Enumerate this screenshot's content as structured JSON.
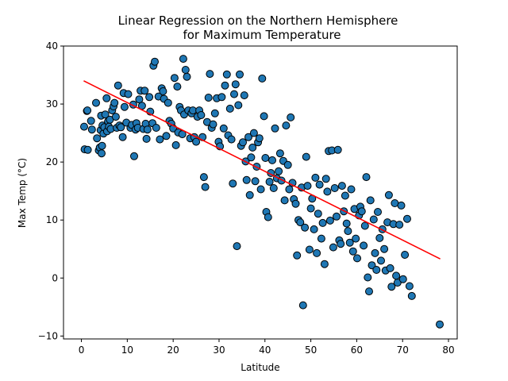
{
  "chart_data": {
    "type": "scatter",
    "title_lines": [
      "Linear Regression on the Northern Hemisphere",
      "for Maximum Temperature"
    ],
    "xlabel": "Latitude",
    "ylabel": "Max Temp (°C)",
    "xlim": [
      -3.9,
      81.9
    ],
    "ylim": [
      -10.5,
      40
    ],
    "xticks": [
      0,
      10,
      20,
      30,
      40,
      50,
      60,
      70,
      80
    ],
    "yticks": [
      -10,
      0,
      10,
      20,
      30,
      40
    ],
    "grid": false,
    "legend": "none",
    "marker_color": "#1f77b4",
    "marker_edge_color": "#000000",
    "regression_color": "#ff0000",
    "regression_line": {
      "x": [
        0.5,
        78.2
      ],
      "y": [
        34.0,
        3.3
      ]
    },
    "points": [
      [
        0.6,
        26.1
      ],
      [
        0.7,
        22.2
      ],
      [
        1.2,
        28.8
      ],
      [
        1.3,
        28.9
      ],
      [
        1.4,
        22.1
      ],
      [
        2.1,
        27.1
      ],
      [
        2.3,
        25.6
      ],
      [
        3.2,
        30.2
      ],
      [
        3.4,
        24.1
      ],
      [
        3.8,
        22.0
      ],
      [
        4.0,
        22.5
      ],
      [
        4.2,
        25.5
      ],
      [
        4.3,
        28.0
      ],
      [
        4.4,
        21.5
      ],
      [
        4.5,
        22.8
      ],
      [
        4.6,
        26.3
      ],
      [
        4.8,
        24.9
      ],
      [
        5.0,
        26.0
      ],
      [
        5.2,
        28.2
      ],
      [
        5.5,
        31.0
      ],
      [
        5.6,
        25.3
      ],
      [
        5.8,
        27.0
      ],
      [
        6.0,
        26.1
      ],
      [
        6.2,
        27.3
      ],
      [
        6.4,
        25.7
      ],
      [
        6.7,
        28.9
      ],
      [
        7.0,
        29.6
      ],
      [
        7.2,
        30.2
      ],
      [
        7.5,
        27.8
      ],
      [
        7.7,
        25.9
      ],
      [
        8.0,
        33.2
      ],
      [
        8.3,
        26.3
      ],
      [
        8.6,
        26.0
      ],
      [
        9.0,
        24.3
      ],
      [
        9.2,
        31.9
      ],
      [
        9.4,
        29.5
      ],
      [
        9.8,
        26.8
      ],
      [
        10.2,
        31.7
      ],
      [
        10.7,
        25.9
      ],
      [
        11.0,
        26.4
      ],
      [
        11.3,
        29.9
      ],
      [
        11.5,
        21.0
      ],
      [
        11.8,
        25.6
      ],
      [
        12.0,
        26.7
      ],
      [
        12.3,
        25.9
      ],
      [
        12.6,
        30.8
      ],
      [
        12.9,
        32.3
      ],
      [
        13.2,
        29.7
      ],
      [
        13.5,
        25.7
      ],
      [
        13.8,
        32.3
      ],
      [
        14.0,
        26.6
      ],
      [
        14.2,
        24.0
      ],
      [
        14.4,
        25.6
      ],
      [
        14.8,
        31.2
      ],
      [
        15.0,
        28.7
      ],
      [
        15.5,
        26.7
      ],
      [
        15.7,
        36.6
      ],
      [
        16.0,
        37.3
      ],
      [
        16.3,
        25.9
      ],
      [
        16.8,
        31.3
      ],
      [
        17.1,
        23.9
      ],
      [
        17.5,
        32.7
      ],
      [
        17.8,
        32.2
      ],
      [
        18.0,
        30.9
      ],
      [
        18.5,
        24.5
      ],
      [
        18.9,
        30.2
      ],
      [
        19.2,
        27.1
      ],
      [
        19.6,
        26.6
      ],
      [
        20.0,
        25.8
      ],
      [
        20.3,
        34.5
      ],
      [
        20.6,
        22.9
      ],
      [
        20.9,
        33.0
      ],
      [
        21.1,
        25.1
      ],
      [
        21.4,
        29.5
      ],
      [
        21.7,
        28.9
      ],
      [
        22.0,
        24.8
      ],
      [
        22.2,
        37.8
      ],
      [
        22.4,
        28.2
      ],
      [
        22.7,
        35.9
      ],
      [
        23.0,
        34.7
      ],
      [
        23.3,
        28.9
      ],
      [
        23.7,
        24.1
      ],
      [
        24.0,
        28.4
      ],
      [
        24.3,
        28.9
      ],
      [
        24.6,
        24.3
      ],
      [
        25.0,
        23.5
      ],
      [
        25.3,
        27.8
      ],
      [
        25.7,
        28.9
      ],
      [
        26.1,
        28.1
      ],
      [
        26.4,
        24.3
      ],
      [
        26.7,
        17.4
      ],
      [
        27.0,
        15.7
      ],
      [
        27.4,
        26.9
      ],
      [
        27.7,
        31.1
      ],
      [
        28.0,
        35.2
      ],
      [
        28.4,
        25.9
      ],
      [
        28.7,
        26.5
      ],
      [
        29.1,
        28.4
      ],
      [
        29.5,
        31.0
      ],
      [
        29.9,
        23.5
      ],
      [
        30.2,
        22.7
      ],
      [
        30.6,
        31.2
      ],
      [
        31.0,
        25.8
      ],
      [
        31.3,
        33.2
      ],
      [
        31.7,
        35.1
      ],
      [
        32.0,
        24.6
      ],
      [
        32.4,
        29.2
      ],
      [
        32.7,
        23.9
      ],
      [
        33.0,
        16.3
      ],
      [
        33.3,
        31.7
      ],
      [
        33.6,
        33.4
      ],
      [
        33.9,
        5.5
      ],
      [
        34.2,
        29.8
      ],
      [
        34.5,
        35.1
      ],
      [
        34.8,
        22.8
      ],
      [
        35.2,
        23.4
      ],
      [
        35.5,
        31.5
      ],
      [
        35.8,
        20.1
      ],
      [
        36.0,
        16.9
      ],
      [
        36.4,
        24.3
      ],
      [
        36.7,
        14.3
      ],
      [
        37.0,
        20.8
      ],
      [
        37.3,
        22.5
      ],
      [
        37.6,
        25.0
      ],
      [
        37.9,
        16.7
      ],
      [
        38.2,
        19.2
      ],
      [
        38.5,
        23.4
      ],
      [
        38.8,
        24.1
      ],
      [
        39.1,
        15.3
      ],
      [
        39.4,
        34.4
      ],
      [
        39.8,
        27.9
      ],
      [
        40.1,
        20.7
      ],
      [
        40.3,
        11.4
      ],
      [
        40.7,
        10.5
      ],
      [
        41.0,
        16.6
      ],
      [
        41.3,
        18.1
      ],
      [
        41.6,
        20.3
      ],
      [
        41.9,
        15.5
      ],
      [
        42.2,
        25.8
      ],
      [
        42.6,
        17.2
      ],
      [
        43.0,
        18.4
      ],
      [
        43.3,
        21.5
      ],
      [
        43.6,
        16.8
      ],
      [
        44.0,
        20.2
      ],
      [
        44.3,
        13.4
      ],
      [
        44.6,
        26.3
      ],
      [
        45.0,
        19.5
      ],
      [
        45.3,
        15.3
      ],
      [
        45.6,
        27.7
      ],
      [
        46.0,
        16.4
      ],
      [
        46.3,
        13.6
      ],
      [
        46.7,
        12.8
      ],
      [
        47.0,
        3.9
      ],
      [
        47.3,
        10.0
      ],
      [
        47.7,
        9.6
      ],
      [
        48.0,
        15.6
      ],
      [
        48.3,
        -4.7
      ],
      [
        48.7,
        8.7
      ],
      [
        49.0,
        20.9
      ],
      [
        49.3,
        15.9
      ],
      [
        49.7,
        4.9
      ],
      [
        50.0,
        12.0
      ],
      [
        50.3,
        13.7
      ],
      [
        50.7,
        8.4
      ],
      [
        51.0,
        17.3
      ],
      [
        51.3,
        4.3
      ],
      [
        51.6,
        11.1
      ],
      [
        51.9,
        16.1
      ],
      [
        52.3,
        6.8
      ],
      [
        52.6,
        9.5
      ],
      [
        53.0,
        2.4
      ],
      [
        53.3,
        17.1
      ],
      [
        53.6,
        14.9
      ],
      [
        53.9,
        21.9
      ],
      [
        54.2,
        9.9
      ],
      [
        54.6,
        22.0
      ],
      [
        54.9,
        5.3
      ],
      [
        55.2,
        15.5
      ],
      [
        55.6,
        10.6
      ],
      [
        55.9,
        22.1
      ],
      [
        56.2,
        6.5
      ],
      [
        56.5,
        5.9
      ],
      [
        56.8,
        15.9
      ],
      [
        57.2,
        11.5
      ],
      [
        57.5,
        14.2
      ],
      [
        57.8,
        9.4
      ],
      [
        58.1,
        8.1
      ],
      [
        58.5,
        6.1
      ],
      [
        58.8,
        15.3
      ],
      [
        59.2,
        4.6
      ],
      [
        59.5,
        11.9
      ],
      [
        59.8,
        6.8
      ],
      [
        60.1,
        3.4
      ],
      [
        60.5,
        10.8
      ],
      [
        60.8,
        12.3
      ],
      [
        61.1,
        11.5
      ],
      [
        61.5,
        5.6
      ],
      [
        61.8,
        9.0
      ],
      [
        62.1,
        17.4
      ],
      [
        62.4,
        0.1
      ],
      [
        62.7,
        -2.3
      ],
      [
        63.0,
        13.4
      ],
      [
        63.3,
        2.2
      ],
      [
        63.7,
        10.1
      ],
      [
        64.0,
        4.3
      ],
      [
        64.3,
        1.4
      ],
      [
        64.6,
        11.4
      ],
      [
        65.0,
        6.9
      ],
      [
        65.3,
        3.0
      ],
      [
        65.6,
        8.4
      ],
      [
        66.0,
        5.0
      ],
      [
        66.3,
        1.3
      ],
      [
        66.7,
        9.6
      ],
      [
        67.0,
        14.3
      ],
      [
        67.3,
        1.7
      ],
      [
        67.6,
        -1.5
      ],
      [
        68.0,
        9.3
      ],
      [
        68.3,
        12.9
      ],
      [
        68.6,
        0.4
      ],
      [
        68.9,
        -0.8
      ],
      [
        69.3,
        9.2
      ],
      [
        69.7,
        12.5
      ],
      [
        70.1,
        -0.2
      ],
      [
        70.5,
        4.0
      ],
      [
        71.0,
        10.2
      ],
      [
        71.5,
        -1.4
      ],
      [
        72.0,
        -3.1
      ],
      [
        78.1,
        -8.0
      ]
    ]
  }
}
